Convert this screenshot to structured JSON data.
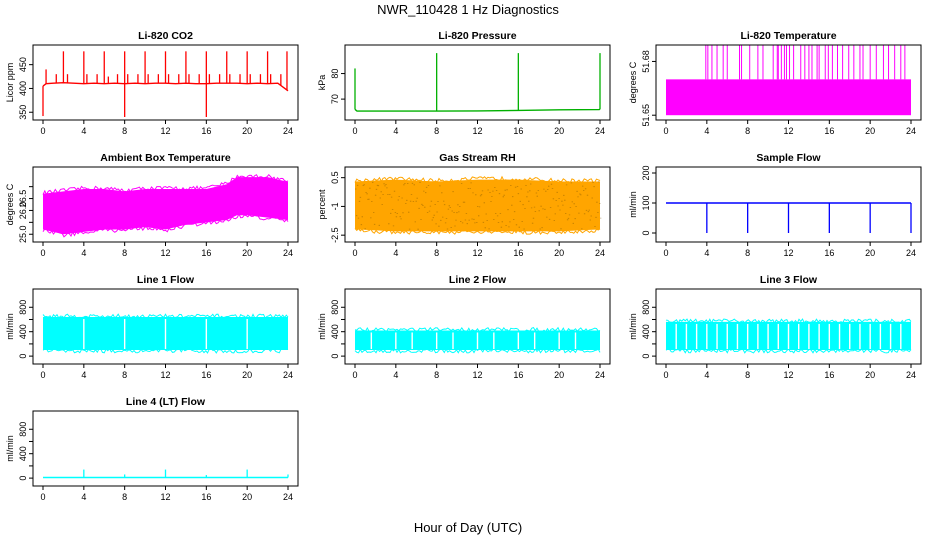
{
  "figure": {
    "title": "NWR_110428  1 Hz Diagnostics",
    "xlabel": "Hour of Day (UTC)"
  },
  "chart_data": [
    {
      "type": "line",
      "title": "Li-820 CO2",
      "ylabel": "Licor ppm",
      "color": "#ff0000",
      "xlim": [
        0,
        24
      ],
      "ylim": [
        340,
        485
      ],
      "xticks": [
        0,
        4,
        8,
        12,
        16,
        20,
        24
      ],
      "yticks": [
        350,
        400,
        450
      ],
      "series": [
        {
          "x": [
            0,
            0.3,
            1,
            2,
            3,
            4,
            5,
            6,
            7,
            8,
            9,
            10,
            11,
            12,
            13,
            14,
            15,
            16,
            17,
            18,
            19,
            20,
            21,
            22,
            23,
            24
          ],
          "values": [
            405,
            410,
            411,
            412,
            411,
            410,
            411,
            410,
            411,
            410,
            411,
            410,
            411,
            411,
            410,
            411,
            410,
            410,
            411,
            411,
            411,
            410,
            411,
            410,
            411,
            395
          ]
        }
      ],
      "spikes_up": [
        {
          "x": 0.3,
          "y": 440
        },
        {
          "x": 1.3,
          "y": 430
        },
        {
          "x": 2.0,
          "y": 478
        },
        {
          "x": 2.4,
          "y": 430
        },
        {
          "x": 4.0,
          "y": 478
        },
        {
          "x": 4.3,
          "y": 430
        },
        {
          "x": 5.3,
          "y": 430
        },
        {
          "x": 6.0,
          "y": 478
        },
        {
          "x": 6.4,
          "y": 425
        },
        {
          "x": 7.3,
          "y": 430
        },
        {
          "x": 8.0,
          "y": 478
        },
        {
          "x": 8.3,
          "y": 430
        },
        {
          "x": 9.3,
          "y": 430
        },
        {
          "x": 10.0,
          "y": 478
        },
        {
          "x": 10.3,
          "y": 430
        },
        {
          "x": 11.3,
          "y": 430
        },
        {
          "x": 12.0,
          "y": 478
        },
        {
          "x": 12.3,
          "y": 430
        },
        {
          "x": 13.3,
          "y": 430
        },
        {
          "x": 14.0,
          "y": 478
        },
        {
          "x": 14.3,
          "y": 430
        },
        {
          "x": 15.3,
          "y": 430
        },
        {
          "x": 16.0,
          "y": 478
        },
        {
          "x": 16.3,
          "y": 430
        },
        {
          "x": 17.3,
          "y": 430
        },
        {
          "x": 18.0,
          "y": 478
        },
        {
          "x": 18.3,
          "y": 430
        },
        {
          "x": 19.3,
          "y": 430
        },
        {
          "x": 20.0,
          "y": 478
        },
        {
          "x": 20.3,
          "y": 430
        },
        {
          "x": 21.3,
          "y": 430
        },
        {
          "x": 22.0,
          "y": 478
        },
        {
          "x": 22.3,
          "y": 430
        },
        {
          "x": 23.3,
          "y": 430
        },
        {
          "x": 23.9,
          "y": 478
        }
      ],
      "spikes_down": [
        {
          "x": 0.0,
          "y": 342
        },
        {
          "x": 8.0,
          "y": 340
        },
        {
          "x": 16.0,
          "y": 340
        }
      ]
    },
    {
      "type": "line",
      "title": "Li-820 Pressure",
      "ylabel": "kPa",
      "color": "#00b000",
      "xlim": [
        0,
        24
      ],
      "ylim": [
        63,
        90
      ],
      "xticks": [
        0,
        4,
        8,
        12,
        16,
        20,
        24
      ],
      "yticks": [
        70,
        80
      ],
      "series": [
        {
          "x": [
            0,
            0.2,
            1,
            4,
            8,
            12,
            16,
            20,
            23.9,
            24
          ],
          "values": [
            66,
            65.3,
            65.3,
            65.3,
            65.3,
            65.4,
            65.6,
            65.8,
            65.9,
            66
          ]
        }
      ],
      "spikes_up": [
        {
          "x": 0.0,
          "y": 82
        },
        {
          "x": 8.0,
          "y": 88
        },
        {
          "x": 16.0,
          "y": 88
        },
        {
          "x": 24.0,
          "y": 88
        }
      ],
      "spikes_down": []
    },
    {
      "type": "step",
      "title": "Li-820 Temperature",
      "ylabel": "degrees C",
      "color": "#ff00ff",
      "xlim": [
        0,
        24
      ],
      "ylim": [
        51.649,
        51.6875
      ],
      "xticks": [
        0,
        4,
        8,
        12,
        16,
        20,
        24
      ],
      "yticks": [
        51.65,
        51.68
      ],
      "base": 51.65,
      "level": 51.67,
      "top": 51.69,
      "spike_x": [
        3.9,
        4.1,
        4.5,
        5.0,
        5.6,
        6.0,
        7.2,
        7.4,
        8.2,
        9.0,
        9.5,
        10.5,
        10.9,
        11.0,
        11.3,
        11.6,
        11.8,
        12.1,
        12.5,
        13.2,
        13.6,
        14.0,
        14.3,
        14.8,
        15.0,
        15.6,
        15.9,
        16.3,
        16.8,
        17.3,
        17.9,
        18.4,
        19.0,
        19.3,
        20.0,
        20.6,
        21.3,
        21.8,
        22.4,
        23.0,
        23.4
      ]
    },
    {
      "type": "band",
      "title": "Ambient Box Temperature",
      "ylabel": "degrees C",
      "color": "#ff00ff",
      "xlim": [
        0,
        24
      ],
      "ylim": [
        24.8,
        27.7
      ],
      "xticks": [
        0,
        4,
        8,
        12,
        16,
        20,
        24
      ],
      "yticks": [
        25.0,
        25.5,
        26.0,
        26.5,
        27.0
      ],
      "tick_labels": [
        "25.0",
        "",
        "26.0",
        "26.5",
        ""
      ],
      "x": [
        0,
        2,
        4,
        6,
        8,
        10,
        12,
        14,
        16,
        18,
        19,
        20,
        22,
        24
      ],
      "upper": [
        26.7,
        26.8,
        26.9,
        26.9,
        26.8,
        26.9,
        26.9,
        26.9,
        26.9,
        27.1,
        27.4,
        27.4,
        27.4,
        27.2
      ],
      "lower": [
        25.2,
        25.0,
        25.1,
        25.2,
        25.2,
        25.3,
        25.2,
        25.4,
        25.5,
        25.6,
        25.8,
        25.8,
        25.7,
        25.6
      ]
    },
    {
      "type": "band",
      "title": "Gas Stream RH",
      "ylabel": "percent",
      "color": "#ffa500",
      "xlim": [
        0,
        24
      ],
      "ylim": [
        -2.7,
        0.9
      ],
      "xticks": [
        0,
        4,
        8,
        12,
        16,
        20,
        24
      ],
      "yticks": [
        -2.5,
        -1.0,
        0.5
      ],
      "x": [
        0,
        4,
        8,
        12,
        16,
        20,
        24
      ],
      "upper": [
        0.3,
        0.4,
        0.3,
        0.4,
        0.4,
        0.3,
        0.3
      ],
      "lower": [
        -2.2,
        -2.3,
        -2.3,
        -2.3,
        -2.3,
        -2.3,
        -2.2
      ]
    },
    {
      "type": "line",
      "title": "Sample Flow",
      "ylabel": "ml/min",
      "color": "#0000ff",
      "xlim": [
        0,
        24
      ],
      "ylim": [
        -20,
        210
      ],
      "xticks": [
        0,
        4,
        8,
        12,
        16,
        20,
        24
      ],
      "yticks": [
        0,
        100,
        200
      ],
      "series": [
        {
          "x": [
            0,
            4,
            8,
            12,
            16,
            20,
            24
          ],
          "values": [
            100,
            100,
            100,
            100,
            100,
            100,
            100
          ]
        }
      ],
      "spikes_up": [],
      "spikes_down": [
        {
          "x": 4.0,
          "y": 0
        },
        {
          "x": 8.0,
          "y": 0
        },
        {
          "x": 12.0,
          "y": 0
        },
        {
          "x": 16.0,
          "y": 0
        },
        {
          "x": 20.0,
          "y": 0
        },
        {
          "x": 24.0,
          "y": 0
        }
      ]
    },
    {
      "type": "band",
      "title": "Line 1 Flow",
      "ylabel": "ml/min",
      "color": "#00ffff",
      "xlim": [
        0,
        24
      ],
      "ylim": [
        -80,
        1050
      ],
      "xticks": [
        0,
        4,
        8,
        12,
        16,
        20,
        24
      ],
      "yticks": [
        0,
        200,
        400,
        600,
        800
      ],
      "tick_labels": [
        "0",
        "",
        "400",
        "",
        "800"
      ],
      "x": [
        0,
        24
      ],
      "upper": [
        640,
        640
      ],
      "lower": [
        100,
        100
      ],
      "gaps": [
        4.0,
        8.0,
        12.0,
        16.0,
        20.0
      ]
    },
    {
      "type": "band",
      "title": "Line 2 Flow",
      "ylabel": "ml/min",
      "color": "#00ffff",
      "xlim": [
        0,
        24
      ],
      "ylim": [
        -80,
        1050
      ],
      "xticks": [
        0,
        4,
        8,
        12,
        16,
        20,
        24
      ],
      "yticks": [
        0,
        200,
        400,
        600,
        800
      ],
      "tick_labels": [
        "0",
        "",
        "400",
        "",
        "800"
      ],
      "x": [
        0,
        24
      ],
      "upper": [
        420,
        420
      ],
      "lower": [
        100,
        100
      ],
      "gaps": [
        1.6,
        4.0,
        5.6,
        8.0,
        9.6,
        12.0,
        13.6,
        16.0,
        17.6,
        20.0,
        21.6
      ]
    },
    {
      "type": "band",
      "title": "Line 3 Flow",
      "ylabel": "ml/min",
      "color": "#00ffff",
      "xlim": [
        0,
        24
      ],
      "ylim": [
        -80,
        1050
      ],
      "xticks": [
        0,
        4,
        8,
        12,
        16,
        20,
        24
      ],
      "yticks": [
        0,
        200,
        400,
        600,
        800
      ],
      "tick_labels": [
        "0",
        "",
        "400",
        "",
        "800"
      ],
      "x": [
        0,
        24
      ],
      "upper": [
        560,
        560
      ],
      "lower": [
        100,
        100
      ],
      "gaps": [
        1.0,
        2.0,
        3.0,
        4.0,
        5.0,
        6.0,
        7.0,
        8.0,
        9.0,
        10.0,
        11.0,
        12.0,
        13.0,
        14.0,
        15.0,
        16.0,
        17.0,
        18.0,
        19.0,
        20.0,
        21.0,
        22.0,
        23.0
      ]
    },
    {
      "type": "line",
      "title": "Line 4 (LT) Flow",
      "ylabel": "ml/min",
      "color": "#00ffff",
      "xlim": [
        0,
        24
      ],
      "ylim": [
        -80,
        1050
      ],
      "xticks": [
        0,
        4,
        8,
        12,
        16,
        20,
        24
      ],
      "yticks": [
        0,
        200,
        400,
        600,
        800
      ],
      "tick_labels": [
        "0",
        "",
        "400",
        "",
        "800"
      ],
      "series": [
        {
          "x": [
            0,
            24
          ],
          "values": [
            10,
            10
          ]
        }
      ],
      "spikes_up": [
        {
          "x": 4.0,
          "y": 140
        },
        {
          "x": 8.0,
          "y": 60
        },
        {
          "x": 12.0,
          "y": 140
        },
        {
          "x": 16.0,
          "y": 50
        },
        {
          "x": 20.0,
          "y": 140
        },
        {
          "x": 24.0,
          "y": 60
        }
      ],
      "spikes_down": []
    }
  ]
}
